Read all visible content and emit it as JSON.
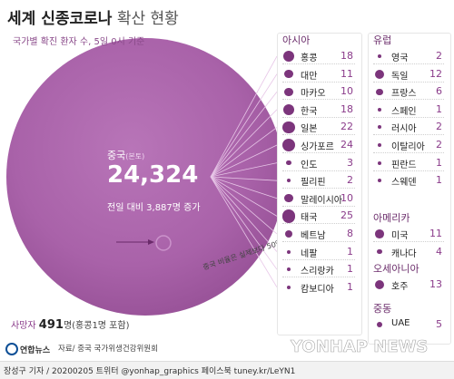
{
  "title_bold": "세계 신종코로나",
  "title_light": "확산 현황",
  "subtitle": "국가별 확진 환자 수, 5일 0시 기준",
  "chart_data": {
    "type": "bubble",
    "china": {
      "label": "중국",
      "label_note": "(본토)",
      "count_text": "24,324",
      "value": 24324,
      "increase_text": "전일 대비 3,887명 증가",
      "increase": 3887
    },
    "scale_note": "중국 비율은 실제보다 50% 이하 축소",
    "groups": [
      {
        "name": "아시아",
        "entries": [
          {
            "country": "홍콩",
            "value": 18
          },
          {
            "country": "대만",
            "value": 11
          },
          {
            "country": "마카오",
            "value": 10
          },
          {
            "country": "한국",
            "value": 18
          },
          {
            "country": "일본",
            "value": 22
          },
          {
            "country": "싱가포르",
            "value": 24
          },
          {
            "country": "인도",
            "value": 3
          },
          {
            "country": "필리핀",
            "value": 2
          },
          {
            "country": "말레이시아",
            "value": 10
          },
          {
            "country": "태국",
            "value": 25
          },
          {
            "country": "베트남",
            "value": 8
          },
          {
            "country": "네팔",
            "value": 1
          },
          {
            "country": "스리랑카",
            "value": 1
          },
          {
            "country": "캄보디아",
            "value": 1
          }
        ]
      },
      {
        "name": "유럽",
        "entries": [
          {
            "country": "영국",
            "value": 2
          },
          {
            "country": "독일",
            "value": 12
          },
          {
            "country": "프랑스",
            "value": 6
          },
          {
            "country": "스페인",
            "value": 1
          },
          {
            "country": "러시아",
            "value": 2
          },
          {
            "country": "이탈리아",
            "value": 2
          },
          {
            "country": "핀란드",
            "value": 1
          },
          {
            "country": "스웨덴",
            "value": 1
          }
        ]
      },
      {
        "name": "아메리카",
        "entries": [
          {
            "country": "미국",
            "value": 11
          },
          {
            "country": "캐나다",
            "value": 4
          }
        ]
      },
      {
        "name": "오세아니아",
        "entries": [
          {
            "country": "호주",
            "value": 13
          }
        ]
      },
      {
        "name": "중동",
        "entries": [
          {
            "country": "UAE",
            "value": 5
          }
        ]
      }
    ],
    "deaths": {
      "label": "사망자",
      "value_text": "491",
      "unit": "명",
      "note": "(홍콩1명 포함)"
    }
  },
  "colors": {
    "bubble": "#b067b0",
    "accent": "#7c357c",
    "value": "#8a3b8a"
  },
  "logo_text": "연합뉴스",
  "source": "자료/ 중국 국가위생건강위원회",
  "watermark": "YONHAP NEWS",
  "footer": "장성구 기자 / 20200205 트위터 @yonhap_graphics 페이스북 tuney.kr/LeYN1"
}
